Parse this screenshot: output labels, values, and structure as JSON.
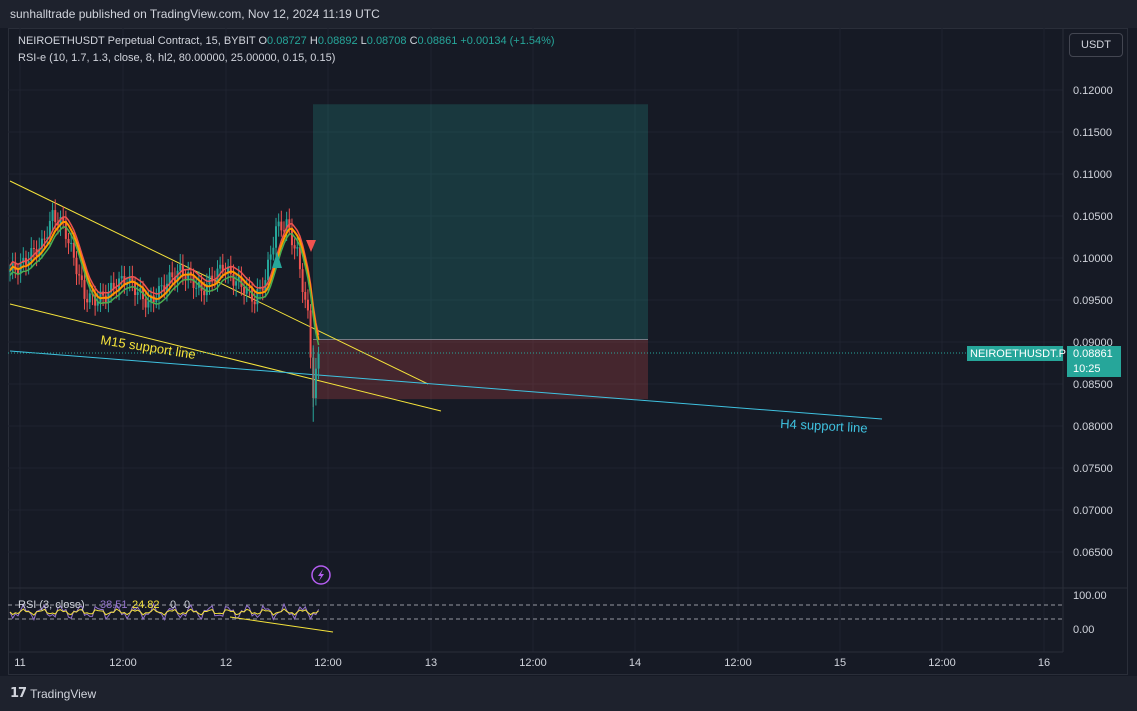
{
  "header": {
    "published": "sunhalltrade published on TradingView.com, Nov 12, 2024 11:19 UTC"
  },
  "legend": {
    "symbol": "NEIROETHUSDT Perpetual Contract, 15, BYBIT",
    "o_label": "O",
    "o": "0.08727",
    "h_label": "H",
    "h": "0.08892",
    "l_label": "L",
    "l": "0.08708",
    "c_label": "C",
    "c": "0.08861",
    "change": "+0.00134 (+1.54%)",
    "indicator": "RSI-e (10, 1.7, 1.3, close, 8, hl2, 80.00000, 25.00000, 0.15, 0.15)"
  },
  "currency_button": "USDT",
  "price_badge": {
    "symbol": "NEIROETHUSDT.P",
    "price": "0.08861",
    "countdown": "10:25"
  },
  "annotations": {
    "m15": "M15 support line",
    "h4": "H4 support line"
  },
  "rsi_pane": {
    "label": "RSI (3, close)",
    "v1": "38.51",
    "v2": "24.82",
    "v3": "0",
    "v4": "0",
    "axis": [
      "100.00",
      "0.00"
    ]
  },
  "footer": {
    "brand": "TradingView"
  },
  "colors": {
    "up": "#26a69a",
    "down": "#ef5350",
    "trendline": "#f5e33b",
    "h4line": "#3fc2e0",
    "rsi": "#9575cd"
  },
  "chart_data": {
    "type": "candlestick",
    "symbol": "NEIROETHUSDT",
    "interval": "15",
    "y_axis": {
      "ticks": [
        "0.12000",
        "0.11500",
        "0.11000",
        "0.10500",
        "0.10000",
        "0.09500",
        "0.09000",
        "0.08500",
        "0.08000",
        "0.07500",
        "0.07000",
        "0.06500"
      ]
    },
    "x_axis": {
      "ticks": [
        "11",
        "12:00",
        "12",
        "12:00",
        "13",
        "12:00",
        "14",
        "12:00",
        "15",
        "12:00",
        "16"
      ]
    },
    "last_price": 0.08861,
    "candles_approx": [
      {
        "t": 0,
        "c": 0.0985
      },
      {
        "t": 4,
        "c": 0.099
      },
      {
        "t": 8,
        "c": 0.1005
      },
      {
        "t": 12,
        "c": 0.1015
      },
      {
        "t": 16,
        "c": 0.105
      },
      {
        "t": 20,
        "c": 0.104
      },
      {
        "t": 24,
        "c": 0.1
      },
      {
        "t": 28,
        "c": 0.0955
      },
      {
        "t": 32,
        "c": 0.095
      },
      {
        "t": 36,
        "c": 0.0955
      },
      {
        "t": 40,
        "c": 0.097
      },
      {
        "t": 44,
        "c": 0.0975
      },
      {
        "t": 48,
        "c": 0.096
      },
      {
        "t": 52,
        "c": 0.0945
      },
      {
        "t": 56,
        "c": 0.096
      },
      {
        "t": 60,
        "c": 0.0975
      },
      {
        "t": 64,
        "c": 0.0985
      },
      {
        "t": 68,
        "c": 0.0975
      },
      {
        "t": 72,
        "c": 0.096
      },
      {
        "t": 76,
        "c": 0.0975
      },
      {
        "t": 80,
        "c": 0.099
      },
      {
        "t": 84,
        "c": 0.0975
      },
      {
        "t": 88,
        "c": 0.0965
      },
      {
        "t": 92,
        "c": 0.095
      },
      {
        "t": 96,
        "c": 0.0975
      },
      {
        "t": 100,
        "c": 0.1035
      },
      {
        "t": 104,
        "c": 0.104
      },
      {
        "t": 108,
        "c": 0.1005
      },
      {
        "t": 112,
        "c": 0.093
      },
      {
        "t": 114,
        "c": 0.084
      },
      {
        "t": 116,
        "c": 0.0886
      }
    ],
    "position": {
      "target": 0.1183,
      "entry": 0.0903,
      "stop": 0.0832
    },
    "lines": [
      {
        "name": "trendline-upper",
        "from": 0.109,
        "to": 0.085
      },
      {
        "name": "M15 support line",
        "from": 0.0945,
        "to": 0.0818
      },
      {
        "name": "H4 support line",
        "from": 0.089,
        "to": 0.0808
      }
    ]
  }
}
